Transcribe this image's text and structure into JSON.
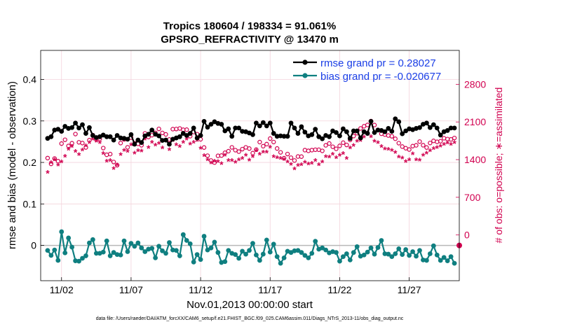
{
  "chart_data": {
    "type": "line",
    "title": "Tropics 180604 / 198334 = 91.061%",
    "subtitle": "GPSRO_REFRACTIVITY @ 13470 m",
    "xlabel": "Nov.01,2013 00:00:00 start",
    "ylabel": "rmse and bias (model - observation)",
    "ylabel_right": "# of obs: o=possible; ∗=assimilated",
    "footer": "data file: /Users/raeder/DAI/ATM_forcXX/CAM6_setup/f.e21.FHIST_BGC.f09_025.CAM6assim.011/Diags_NTrS_2013-11/obs_diag_output.nc",
    "xlim": [
      0.5,
      30.6
    ],
    "ylim": [
      -0.085,
      0.47
    ],
    "ylim_right": [
      -850.0,
      3430.0
    ],
    "x_ticks": [
      2,
      7,
      12,
      17,
      22,
      27
    ],
    "x_tick_labels": [
      "11/02",
      "11/07",
      "11/12",
      "11/17",
      "11/22",
      "11/27"
    ],
    "y_ticks": [
      0,
      0.1,
      0.2,
      0.3,
      0.4
    ],
    "y_tick_labels": [
      "0",
      "0.1",
      "0.2",
      "0.3",
      "0.4"
    ],
    "y_right_ticks": [
      0,
      700,
      1400,
      2100,
      2800
    ],
    "y_right_tick_labels": [
      "0",
      "700",
      "1400",
      "2100",
      "2800"
    ],
    "grid": true,
    "legend_position": "top-right",
    "colors": {
      "rmse": "#000000",
      "bias": "#0f7f80",
      "obs": "#d1004f",
      "legend_text": "#1a3ee6",
      "grid": "#f3d3dc",
      "zero_line": "#b8b8b8"
    },
    "series": [
      {
        "name": "rmse grand pr = 0.28027",
        "x": [
          1.0,
          1.25,
          1.5,
          1.75,
          2.0,
          2.25,
          2.5,
          2.75,
          3.0,
          3.25,
          3.5,
          3.75,
          4.0,
          4.25,
          4.5,
          4.75,
          5.0,
          5.25,
          5.5,
          5.75,
          6.0,
          6.25,
          6.5,
          6.75,
          7.0,
          7.25,
          7.5,
          7.75,
          8.0,
          8.25,
          8.5,
          8.75,
          9.0,
          9.25,
          9.5,
          9.75,
          10.0,
          10.25,
          10.5,
          10.75,
          11.0,
          11.25,
          11.5,
          11.75,
          12.0,
          12.25,
          12.5,
          12.75,
          13.0,
          13.25,
          13.5,
          13.75,
          14.0,
          14.25,
          14.5,
          14.75,
          15.0,
          15.25,
          15.5,
          15.75,
          16.0,
          16.25,
          16.5,
          16.75,
          17.0,
          17.25,
          17.5,
          17.75,
          18.0,
          18.25,
          18.5,
          18.75,
          19.0,
          19.25,
          19.5,
          19.75,
          20.0,
          20.25,
          20.5,
          20.75,
          21.0,
          21.25,
          21.5,
          21.75,
          22.0,
          22.25,
          22.5,
          22.75,
          23.0,
          23.25,
          23.5,
          23.75,
          24.0,
          24.25,
          24.5,
          24.75,
          25.0,
          25.25,
          25.5,
          25.75,
          26.0,
          26.25,
          26.5,
          26.75,
          27.0,
          27.25,
          27.5,
          27.75,
          28.0,
          28.25,
          28.5,
          28.75,
          29.0,
          29.25,
          29.5,
          29.75,
          30.0,
          30.25
        ],
        "values": [
          0.258,
          0.262,
          0.278,
          0.28,
          0.275,
          0.287,
          0.282,
          0.284,
          0.295,
          0.283,
          0.291,
          0.27,
          0.284,
          0.265,
          0.26,
          0.262,
          0.266,
          0.262,
          0.262,
          0.254,
          0.265,
          0.259,
          0.258,
          0.256,
          0.267,
          0.244,
          0.254,
          0.248,
          0.264,
          0.268,
          0.278,
          0.268,
          0.264,
          0.253,
          0.254,
          0.244,
          0.256,
          0.259,
          0.262,
          0.27,
          0.265,
          0.27,
          0.283,
          0.259,
          0.265,
          0.299,
          0.285,
          0.292,
          0.298,
          0.294,
          0.292,
          0.276,
          0.281,
          0.263,
          0.283,
          0.283,
          0.275,
          0.274,
          0.271,
          0.267,
          0.295,
          0.288,
          0.296,
          0.288,
          0.295,
          0.27,
          0.263,
          0.264,
          0.263,
          0.263,
          0.295,
          0.283,
          0.27,
          0.286,
          0.273,
          0.264,
          0.267,
          0.28,
          0.262,
          0.257,
          0.265,
          0.262,
          0.276,
          0.272,
          0.264,
          0.281,
          0.274,
          0.258,
          0.276,
          0.276,
          0.259,
          0.274,
          0.27,
          0.299,
          0.272,
          0.278,
          0.277,
          0.274,
          0.282,
          0.275,
          0.305,
          0.298,
          0.269,
          0.276,
          0.281,
          0.279,
          0.282,
          0.284,
          0.292,
          0.295,
          0.284,
          0.291,
          0.283,
          0.266,
          0.274,
          0.277,
          0.283,
          0.283
        ]
      },
      {
        "name": "bias grand pr = -0.020677",
        "x": [
          1.0,
          1.25,
          1.5,
          1.75,
          2.0,
          2.25,
          2.5,
          2.75,
          3.0,
          3.25,
          3.5,
          3.75,
          4.0,
          4.25,
          4.5,
          4.75,
          5.0,
          5.25,
          5.5,
          5.75,
          6.0,
          6.25,
          6.5,
          6.75,
          7.0,
          7.25,
          7.5,
          7.75,
          8.0,
          8.25,
          8.5,
          8.75,
          9.0,
          9.25,
          9.5,
          9.75,
          10.0,
          10.25,
          10.5,
          10.75,
          11.0,
          11.25,
          11.5,
          11.75,
          12.0,
          12.25,
          12.5,
          12.75,
          13.0,
          13.25,
          13.5,
          13.75,
          14.0,
          14.25,
          14.5,
          14.75,
          15.0,
          15.25,
          15.5,
          15.75,
          16.0,
          16.25,
          16.5,
          16.75,
          17.0,
          17.25,
          17.5,
          17.75,
          18.0,
          18.25,
          18.5,
          18.75,
          19.0,
          19.25,
          19.5,
          19.75,
          20.0,
          20.25,
          20.5,
          20.75,
          21.0,
          21.25,
          21.5,
          21.75,
          22.0,
          22.25,
          22.5,
          22.75,
          23.0,
          23.25,
          23.5,
          23.75,
          24.0,
          24.25,
          24.5,
          24.75,
          25.0,
          25.25,
          25.5,
          25.75,
          26.0,
          26.25,
          26.5,
          26.75,
          27.0,
          27.25,
          27.5,
          27.75,
          28.0,
          28.25,
          28.5,
          28.75,
          29.0,
          29.25,
          29.5,
          29.75,
          30.0,
          30.25
        ],
        "values": [
          -0.012,
          -0.024,
          -0.011,
          -0.036,
          0.033,
          -0.018,
          0.018,
          -0.004,
          -0.037,
          -0.038,
          -0.031,
          -0.025,
          0.006,
          0.014,
          -0.019,
          -0.019,
          -0.016,
          0.011,
          -0.025,
          -0.017,
          -0.022,
          -0.023,
          0.011,
          -0.015,
          0.005,
          -0.002,
          0.006,
          -0.006,
          -0.015,
          -0.009,
          -0.007,
          -0.03,
          -0.002,
          -0.013,
          -0.019,
          0.007,
          -0.011,
          -0.012,
          -0.025,
          0.026,
          0.012,
          0.004,
          -0.04,
          -0.022,
          -0.034,
          0.022,
          -0.011,
          -0.006,
          0.008,
          -0.017,
          -0.041,
          -0.039,
          -0.012,
          -0.019,
          -0.022,
          -0.031,
          -0.014,
          -0.021,
          -0.012,
          0.005,
          -0.023,
          -0.036,
          -0.021,
          0.013,
          -0.016,
          0.003,
          -0.027,
          -0.043,
          -0.03,
          -0.014,
          -0.017,
          -0.013,
          -0.012,
          -0.017,
          -0.024,
          -0.03,
          -0.019,
          0.01,
          -0.009,
          -0.006,
          -0.011,
          -0.018,
          -0.015,
          -0.017,
          -0.038,
          -0.027,
          -0.02,
          -0.035,
          -0.017,
          -0.003,
          -0.026,
          -0.023,
          -0.016,
          -0.006,
          -0.021,
          -0.005,
          0.012,
          -0.02,
          -0.021,
          -0.027,
          -0.02,
          -0.008,
          -0.022,
          -0.01,
          -0.024,
          -0.015,
          -0.026,
          -0.012,
          -0.035,
          -0.036,
          -0.02,
          -0.001,
          -0.023,
          -0.036,
          -0.029,
          -0.037,
          -0.027,
          -0.043
        ],
        "y_secondary": false
      },
      {
        "name": "possible (o)",
        "marker": "o",
        "axis": "right",
        "x": [
          1.0,
          1.25,
          1.5,
          1.75,
          2.0,
          2.25,
          2.5,
          2.75,
          3.0,
          3.25,
          3.5,
          3.75,
          4.0,
          4.25,
          4.5,
          4.75,
          5.0,
          5.25,
          5.5,
          5.75,
          6.0,
          6.25,
          6.5,
          6.75,
          7.0,
          7.25,
          7.5,
          7.75,
          8.0,
          8.25,
          8.5,
          8.75,
          9.0,
          9.25,
          9.5,
          9.75,
          10.0,
          10.25,
          10.5,
          10.75,
          11.0,
          11.25,
          11.5,
          11.75,
          12.0,
          12.25,
          12.5,
          12.75,
          13.0,
          13.25,
          13.5,
          13.75,
          14.0,
          14.25,
          14.5,
          14.75,
          15.0,
          15.25,
          15.5,
          15.75,
          16.0,
          16.25,
          16.5,
          16.75,
          17.0,
          17.25,
          17.5,
          17.75,
          18.0,
          18.25,
          18.5,
          18.75,
          19.0,
          19.25,
          19.5,
          19.75,
          20.0,
          20.25,
          20.5,
          20.75,
          21.0,
          21.25,
          21.5,
          21.75,
          22.0,
          22.25,
          22.5,
          22.75,
          23.0,
          23.25,
          23.5,
          23.75,
          24.0,
          24.25,
          24.5,
          24.75,
          25.0,
          25.25,
          25.5,
          25.75,
          26.0,
          26.25,
          26.5,
          26.75,
          27.0,
          27.25,
          27.5,
          27.75,
          28.0,
          28.25,
          28.5,
          28.75,
          29.0,
          29.25,
          29.5,
          29.75,
          30.0,
          30.25
        ],
        "values": [
          1429,
          1321,
          1420,
          1372,
          1698,
          1769,
          1655,
          1705,
          1875,
          1722,
          1708,
          1626,
          1762,
          1855,
          1777,
          1785,
          1615,
          1490,
          1503,
          1356,
          1296,
          1708,
          1775,
          1629,
          1809,
          1703,
          1693,
          1667,
          1888,
          1820,
          1854,
          1898,
          1971,
          1896,
          1869,
          1775,
          1967,
          1969,
          1979,
          1955,
          1957,
          1835,
          1913,
          1873,
          1778,
          1625,
          1473,
          1384,
          1346,
          1471,
          1476,
          1528,
          1557,
          1628,
          1576,
          1549,
          1595,
          1628,
          1606,
          1521,
          1586,
          1726,
          1650,
          1689,
          1791,
          1727,
          1607,
          1535,
          1427,
          1504,
          1436,
          1384,
          1458,
          1456,
          1577,
          1564,
          1577,
          1584,
          1584,
          1563,
          1666,
          1700,
          1639,
          1601,
          1656,
          1715,
          1673,
          1766,
          1838,
          1891,
          1980,
          2020,
          2045,
          2116,
          2043,
          1953,
          1881,
          1866,
          1848,
          1834,
          1788,
          1706,
          1643,
          1612,
          1588,
          1651,
          1666,
          1735,
          1668,
          1625,
          1709,
          1749,
          1731,
          1742,
          1798,
          1782,
          1777,
          1802
        ]
      },
      {
        "name": "assimilated (∗)",
        "marker": "*",
        "axis": "right",
        "x": [
          1.0,
          1.25,
          1.5,
          1.75,
          2.0,
          2.25,
          2.5,
          2.75,
          3.0,
          3.25,
          3.5,
          3.75,
          4.0,
          4.25,
          4.5,
          4.75,
          5.0,
          5.25,
          5.5,
          5.75,
          6.0,
          6.25,
          6.5,
          6.75,
          7.0,
          7.25,
          7.5,
          7.75,
          8.0,
          8.25,
          8.5,
          8.75,
          9.0,
          9.25,
          9.5,
          9.75,
          10.0,
          10.25,
          10.5,
          10.75,
          11.0,
          11.25,
          11.5,
          11.75,
          12.0,
          12.25,
          12.5,
          12.75,
          13.0,
          13.25,
          13.5,
          13.75,
          14.0,
          14.25,
          14.5,
          14.75,
          15.0,
          15.25,
          15.5,
          15.75,
          16.0,
          16.25,
          16.5,
          16.75,
          17.0,
          17.25,
          17.5,
          17.75,
          18.0,
          18.25,
          18.5,
          18.75,
          19.0,
          19.25,
          19.5,
          19.75,
          20.0,
          20.25,
          20.5,
          20.75,
          21.0,
          21.25,
          21.5,
          21.75,
          22.0,
          22.25,
          22.5,
          22.75,
          23.0,
          23.25,
          23.5,
          23.75,
          24.0,
          24.25,
          24.5,
          24.75,
          25.0,
          25.25,
          25.5,
          25.75,
          26.0,
          26.25,
          26.5,
          26.75,
          27.0,
          27.25,
          27.5,
          27.75,
          28.0,
          28.25,
          28.5,
          28.75,
          29.0,
          29.25,
          29.5,
          29.75,
          30.0,
          30.25
        ],
        "values": [
          1150,
          1326,
          1381,
          1281,
          1342,
          1445,
          1574,
          1629,
          1538,
          1478,
          1563,
          1640,
          1703,
          1766,
          1724,
          1699,
          1501,
          1353,
          1366,
          1216,
          1286,
          1476,
          1559,
          1536,
          1659,
          1507,
          1553,
          1542,
          1764,
          1611,
          1705,
          1656,
          1687,
          1604,
          1730,
          1568,
          1742,
          1658,
          1629,
          1704,
          1768,
          1671,
          1704,
          1741,
          1593,
          1458,
          1382,
          1325,
          1356,
          1348,
          1309,
          1465,
          1366,
          1371,
          1336,
          1379,
          1404,
          1463,
          1372,
          1437,
          1549,
          1486,
          1522,
          1523,
          1618,
          1442,
          1422,
          1404,
          1385,
          1341,
          1296,
          1213,
          1279,
          1288,
          1338,
          1304,
          1317,
          1367,
          1293,
          1339,
          1440,
          1434,
          1484,
          1418,
          1468,
          1500,
          1406,
          1603,
          1650,
          1729,
          1742,
          1802,
          1879,
          1808,
          1727,
          1702,
          1630,
          1582,
          1578,
          1556,
          1517,
          1430,
          1416,
          1347,
          1380,
          1492,
          1380,
          1375,
          1467,
          1503,
          1551,
          1591,
          1609,
          1636,
          1665,
          1694,
          1665,
          1703
        ]
      }
    ]
  }
}
